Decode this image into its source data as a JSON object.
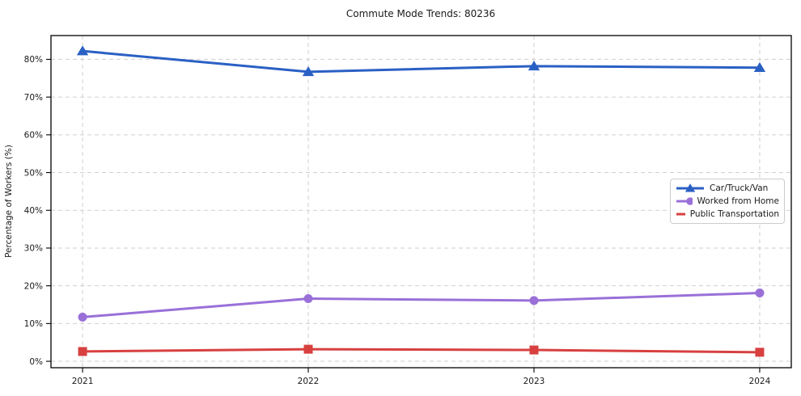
{
  "chart_data": {
    "type": "line",
    "title": "Commute Mode Trends: 80236",
    "xlabel": "",
    "ylabel": "Percentage of Workers (%)",
    "categories": [
      2021,
      2022,
      2023,
      2024
    ],
    "x_tick_labels": [
      "2021",
      "2022",
      "2023",
      "2024"
    ],
    "y_ticks": [
      0,
      10,
      20,
      30,
      40,
      50,
      60,
      70,
      80
    ],
    "y_tick_labels": [
      "0%",
      "10%",
      "20%",
      "30%",
      "40%",
      "50%",
      "60%",
      "70%",
      "80%"
    ],
    "xlim": [
      2020.86,
      2024.14
    ],
    "ylim": [
      -1.7,
      86.3
    ],
    "grid": "dashed both axes",
    "legend_position": "center right",
    "background_color": "#ffffff",
    "text_color": "#1a1a1a",
    "grid_color": "#cfcfcf",
    "series": [
      {
        "name": "Car/Truck/Van",
        "marker": "triangle",
        "color": "#2a60c4",
        "values": [
          82.2,
          76.7,
          78.2,
          77.8
        ]
      },
      {
        "name": "Worked from Home",
        "marker": "circle",
        "color": "#9a70d8",
        "values": [
          11.7,
          16.6,
          16.1,
          18.1
        ]
      },
      {
        "name": "Public Transportation",
        "marker": "square",
        "color": "#d84040",
        "values": [
          2.6,
          3.2,
          3.0,
          2.4
        ]
      }
    ]
  }
}
